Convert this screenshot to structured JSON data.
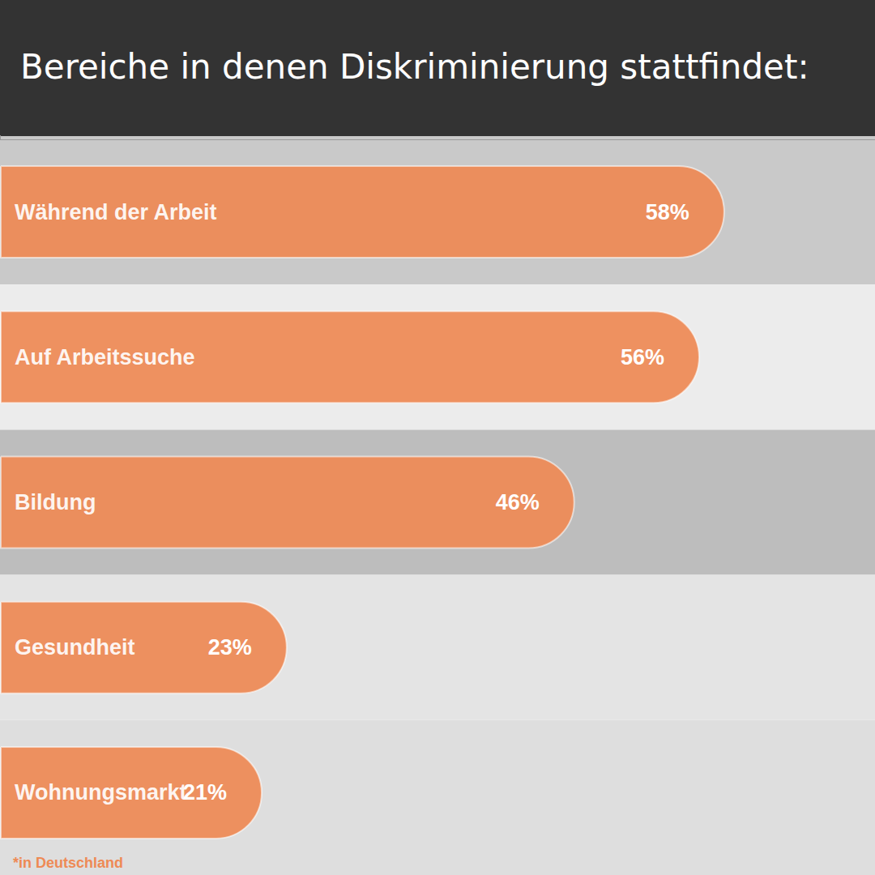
{
  "chart_data": {
    "type": "bar",
    "title": "Bereiche in denen Diskriminierung stattfindet:",
    "categories": [
      "Während der Arbeit",
      "Auf Arbeitssuche",
      "Bildung",
      "Gesundheit",
      "Wohnungsmarkt"
    ],
    "values": [
      58,
      56,
      46,
      23,
      21
    ],
    "value_labels": [
      "58%",
      "56%",
      "46%",
      "23%",
      "21%"
    ],
    "color": "#ee8a55",
    "orientation": "horizontal",
    "data_labels": true,
    "tick_labels": false,
    "grid": false,
    "xlim": [
      0,
      70
    ],
    "xticks": [
      0,
      70
    ],
    "annotation": "*in Deutschland"
  }
}
